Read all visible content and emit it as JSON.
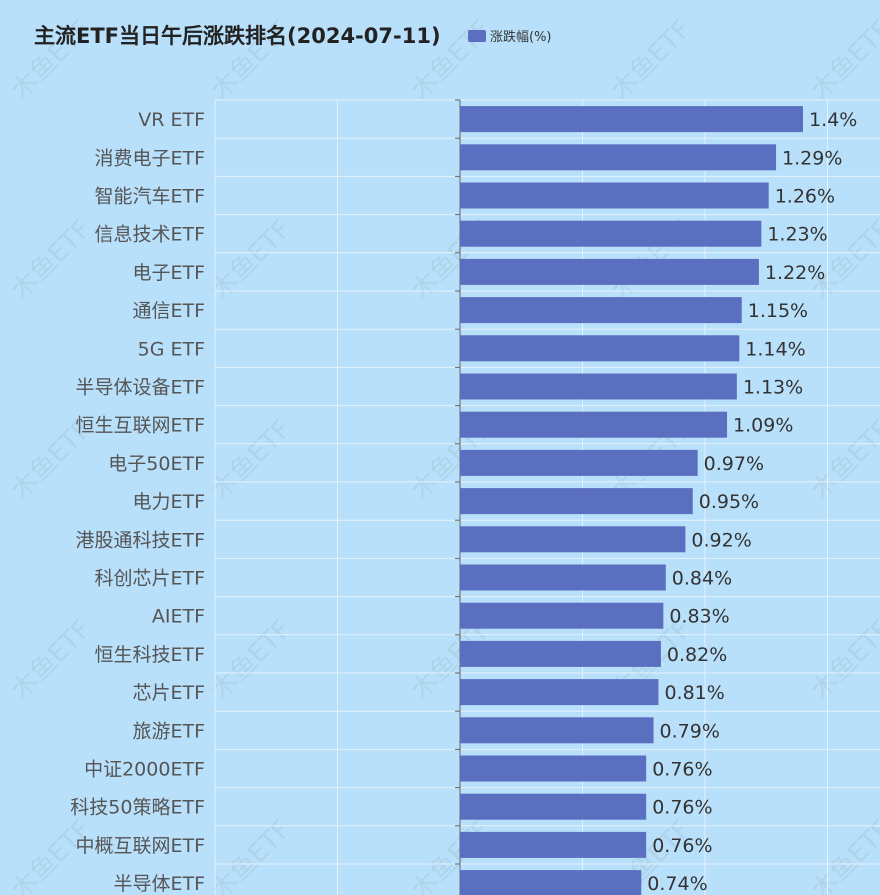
{
  "chart_data": {
    "type": "bar",
    "orientation": "horizontal",
    "title": "主流ETF当日午后涨跌排名(2024-07-11)",
    "legend": "涨跌幅(%)",
    "legend_position": "top",
    "value_suffix": "%",
    "xlim": [
      -2.0,
      1.7
    ],
    "grid": true,
    "categories": [
      "VR ETF",
      "消费电子ETF",
      "智能汽车ETF",
      "信息技术ETF",
      "电子ETF",
      "通信ETF",
      "5G ETF",
      "半导体设备ETF",
      "恒生互联网ETF",
      "电子50ETF",
      "电力ETF",
      "港股通科技ETF",
      "科创芯片ETF",
      "AIETF",
      "恒生科技ETF",
      "芯片ETF",
      "旅游ETF",
      "中证2000ETF",
      "科技50策略ETF",
      "中概互联网ETF",
      "半导体ETF"
    ],
    "value_labels": [
      "1.4%",
      "1.29%",
      "1.26%",
      "1.23%",
      "1.22%",
      "1.15%",
      "1.14%",
      "1.13%",
      "1.09%",
      "0.97%",
      "0.95%",
      "0.92%",
      "0.84%",
      "0.83%",
      "0.82%",
      "0.81%",
      "0.79%",
      "0.76%",
      "0.76%",
      "0.76%",
      "0.74%"
    ],
    "series": [
      {
        "name": "涨跌幅(%)",
        "color": "#5b6fc1",
        "values": [
          1.4,
          1.29,
          1.26,
          1.23,
          1.22,
          1.15,
          1.14,
          1.13,
          1.09,
          0.97,
          0.95,
          0.92,
          0.84,
          0.83,
          0.82,
          0.81,
          0.79,
          0.76,
          0.76,
          0.76,
          0.74
        ]
      }
    ]
  },
  "watermark": "木鱼ETF"
}
